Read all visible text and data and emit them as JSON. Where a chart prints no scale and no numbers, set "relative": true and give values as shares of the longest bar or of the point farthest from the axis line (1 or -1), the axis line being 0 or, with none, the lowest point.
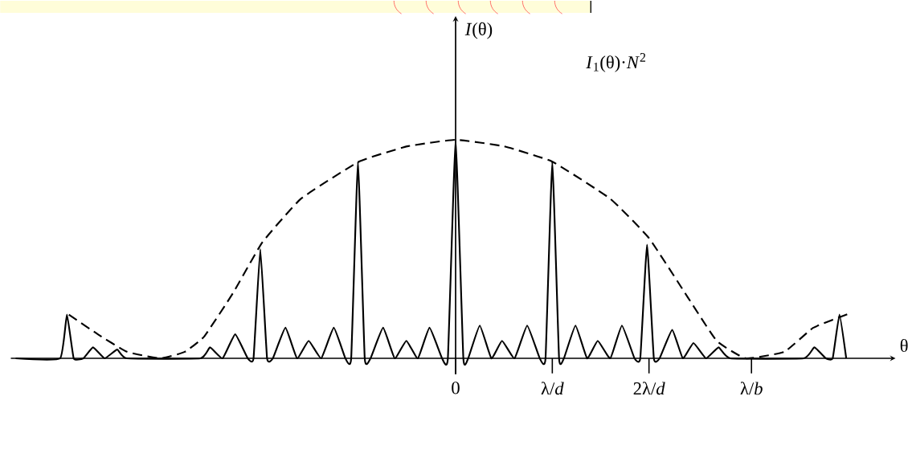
{
  "chart_data": {
    "type": "line",
    "relative": true,
    "xlabel": "θ",
    "annotations": [
      "*I*(θ)"
    ],
    "marker": "none",
    "xlim": [
      -4.6,
      4.55
    ],
    "xticks": [
      0,
      {
        "value": 1,
        "label": "λ/*d*"
      },
      {
        "value": 2,
        "label": "2λ/*d*"
      },
      {
        "value": 3.06,
        "label": "λ/*b*"
      }
    ],
    "series": [
      {
        "color": "#000000",
        "line_style": "solid",
        "x": [
          -4.55,
          -4.09,
          -4.02,
          -3.95,
          -3.85,
          -3.75,
          -3.63,
          -3.5,
          -3.4,
          -2.64,
          -2.54,
          -2.41,
          -2.28,
          -2.15,
          -2.09,
          -2.02,
          -1.95,
          -1.89,
          -1.76,
          -1.64,
          -1.52,
          -1.39,
          -1.26,
          -1.14,
          -1.08,
          -1.01,
          -0.94,
          -0.88,
          -0.75,
          -0.63,
          -0.51,
          -0.39,
          -0.27,
          -0.14,
          -0.08,
          0,
          0.08,
          0.13,
          0.25,
          0.37,
          0.48,
          0.61,
          0.74,
          0.87,
          0.93,
          1.0,
          1.07,
          1.12,
          1.24,
          1.36,
          1.47,
          1.6,
          1.72,
          1.85,
          1.91,
          1.98,
          2.05,
          2.11,
          2.24,
          2.35,
          2.46,
          2.59,
          2.72,
          2.84,
          3.6,
          3.71,
          3.83,
          3.9,
          3.97,
          4.04
        ],
        "values": [
          0,
          0,
          0.2,
          0,
          0,
          0.05,
          0,
          0.04,
          0,
          0,
          0.05,
          0,
          0.11,
          0,
          0,
          0.5,
          0,
          0,
          0.14,
          0,
          0.08,
          0,
          0.14,
          0,
          0,
          0.9,
          0,
          0,
          0.14,
          0,
          0.08,
          0,
          0.14,
          0,
          0,
          1.0,
          0,
          0,
          0.15,
          0,
          0.08,
          0,
          0.15,
          0,
          0,
          0.9,
          0,
          0,
          0.15,
          0,
          0.08,
          0,
          0.15,
          0,
          0,
          0.52,
          0,
          0,
          0.13,
          0,
          0.07,
          0,
          0.05,
          0,
          0,
          0.05,
          0,
          0,
          0.2,
          0
        ]
      },
      {
        "name": "*I*$_{1}$(θ)·*N*$^{2}$",
        "color": "#000000",
        "line_style": "dashed",
        "x": [
          -4.0,
          -3.7,
          -3.4,
          -3.05,
          -2.8,
          -2.6,
          -2.3,
          -2.0,
          -1.6,
          -1.0,
          -0.5,
          0,
          0.5,
          1.0,
          1.6,
          2.0,
          2.4,
          2.7,
          3.0,
          3.4,
          3.7,
          4.1
        ],
        "values": [
          0.2,
          0.11,
          0.03,
          0,
          0.03,
          0.1,
          0.3,
          0.53,
          0.73,
          0.9,
          0.97,
          1.0,
          0.97,
          0.9,
          0.73,
          0.55,
          0.28,
          0.08,
          0,
          0.03,
          0.14,
          0.21
        ]
      }
    ]
  }
}
